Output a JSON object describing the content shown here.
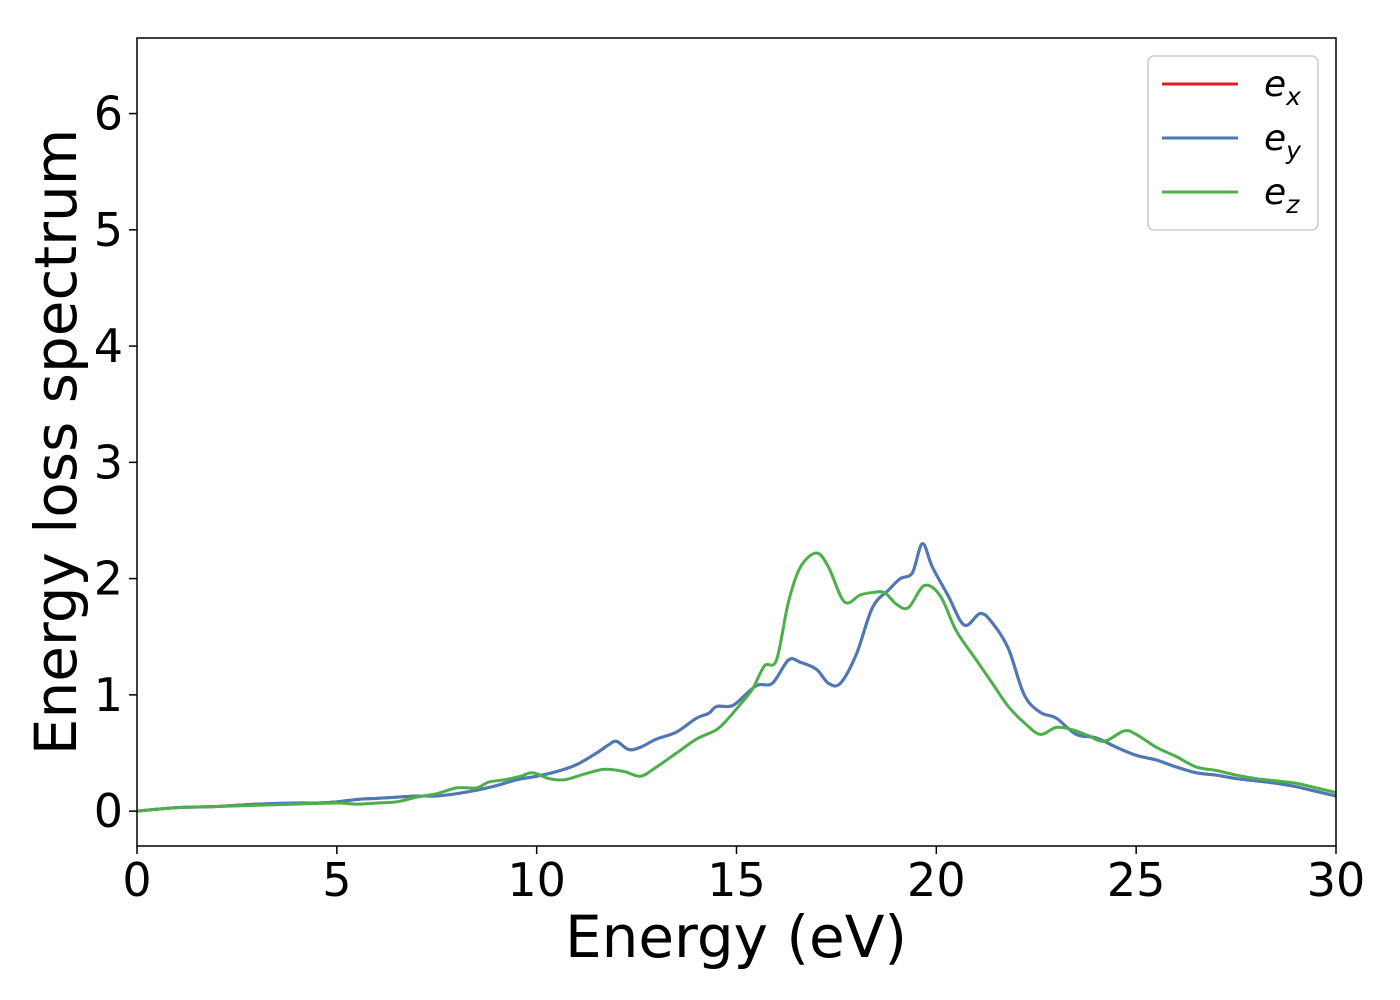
{
  "chart_data": {
    "type": "line",
    "xlabel": "Energy (eV)",
    "ylabel": "Energy loss spectrum",
    "xlim": [
      0,
      30
    ],
    "ylim": [
      -0.3,
      6.65
    ],
    "xticks": [
      "0",
      "5",
      "10",
      "15",
      "20",
      "25",
      "30"
    ],
    "yticks": [
      "0",
      "1",
      "2",
      "3",
      "4",
      "5",
      "6"
    ],
    "grid": false,
    "legend_position": "top-right",
    "series": [
      {
        "name": "e_x",
        "legend_base": "e",
        "legend_sub": "x",
        "color": "#e41a1c",
        "x": [
          0,
          1,
          2,
          3,
          4,
          4.5,
          5,
          5.5,
          6,
          6.5,
          7,
          7.5,
          8,
          8.5,
          9,
          9.5,
          10,
          10.5,
          11,
          11.5,
          11.8,
          12,
          12.3,
          12.6,
          13,
          13.5,
          14,
          14.3,
          14.5,
          14.8,
          15,
          15.5,
          15.9,
          16.3,
          16.6,
          17,
          17.3,
          17.6,
          18,
          18.4,
          18.8,
          19.1,
          19.4,
          19.65,
          19.9,
          20.3,
          20.7,
          21.1,
          21.4,
          21.8,
          22.2,
          22.6,
          23,
          23.5,
          24,
          24.5,
          25,
          25.5,
          26,
          26.5,
          27,
          27.5,
          28,
          28.5,
          29,
          29.5,
          30
        ],
        "y": [
          0,
          0.03,
          0.04,
          0.06,
          0.07,
          0.07,
          0.08,
          0.1,
          0.11,
          0.12,
          0.13,
          0.13,
          0.15,
          0.18,
          0.22,
          0.27,
          0.3,
          0.34,
          0.4,
          0.5,
          0.57,
          0.6,
          0.53,
          0.55,
          0.62,
          0.68,
          0.8,
          0.84,
          0.9,
          0.9,
          0.93,
          1.08,
          1.1,
          1.3,
          1.28,
          1.22,
          1.1,
          1.1,
          1.35,
          1.75,
          1.9,
          2.0,
          2.05,
          2.3,
          2.1,
          1.85,
          1.6,
          1.7,
          1.62,
          1.4,
          1.0,
          0.85,
          0.8,
          0.66,
          0.63,
          0.55,
          0.48,
          0.44,
          0.38,
          0.33,
          0.31,
          0.28,
          0.26,
          0.24,
          0.21,
          0.17,
          0.13
        ]
      },
      {
        "name": "e_y",
        "legend_base": "e",
        "legend_sub": "y",
        "color": "#4a7ab8",
        "x": [
          0,
          1,
          2,
          3,
          4,
          4.5,
          5,
          5.5,
          6,
          6.5,
          7,
          7.5,
          8,
          8.5,
          9,
          9.5,
          10,
          10.5,
          11,
          11.5,
          11.8,
          12,
          12.3,
          12.6,
          13,
          13.5,
          14,
          14.3,
          14.5,
          14.8,
          15,
          15.5,
          15.9,
          16.3,
          16.6,
          17,
          17.3,
          17.6,
          18,
          18.4,
          18.8,
          19.1,
          19.4,
          19.65,
          19.9,
          20.3,
          20.7,
          21.1,
          21.4,
          21.8,
          22.2,
          22.6,
          23,
          23.5,
          24,
          24.5,
          25,
          25.5,
          26,
          26.5,
          27,
          27.5,
          28,
          28.5,
          29,
          29.5,
          30
        ],
        "y": [
          0,
          0.03,
          0.04,
          0.06,
          0.07,
          0.07,
          0.08,
          0.1,
          0.11,
          0.12,
          0.13,
          0.13,
          0.15,
          0.18,
          0.22,
          0.27,
          0.3,
          0.34,
          0.4,
          0.5,
          0.57,
          0.6,
          0.53,
          0.55,
          0.62,
          0.68,
          0.8,
          0.84,
          0.9,
          0.9,
          0.93,
          1.08,
          1.1,
          1.3,
          1.28,
          1.22,
          1.1,
          1.1,
          1.35,
          1.75,
          1.9,
          2.0,
          2.05,
          2.3,
          2.1,
          1.85,
          1.6,
          1.7,
          1.62,
          1.4,
          1.0,
          0.85,
          0.8,
          0.66,
          0.63,
          0.55,
          0.48,
          0.44,
          0.38,
          0.33,
          0.31,
          0.28,
          0.26,
          0.24,
          0.21,
          0.17,
          0.13
        ]
      },
      {
        "name": "e_z",
        "legend_base": "e",
        "legend_sub": "z",
        "color": "#4daf4a",
        "x": [
          0,
          1,
          2,
          3,
          4,
          5,
          5.5,
          6,
          6.5,
          7,
          7.5,
          8,
          8.5,
          8.8,
          9.2,
          9.6,
          9.9,
          10.3,
          10.7,
          11.2,
          11.7,
          12.2,
          12.6,
          13,
          13.5,
          14,
          14.5,
          14.8,
          15.1,
          15.4,
          15.7,
          16,
          16.3,
          16.6,
          17,
          17.3,
          17.7,
          18.1,
          18.4,
          18.7,
          19,
          19.3,
          19.7,
          20.1,
          20.5,
          21,
          21.4,
          21.8,
          22.2,
          22.6,
          23,
          23.4,
          23.8,
          24.2,
          24.7,
          25,
          25.5,
          26,
          26.5,
          27,
          27.5,
          28,
          28.5,
          29,
          29.5,
          30
        ],
        "y": [
          0,
          0.03,
          0.04,
          0.05,
          0.06,
          0.07,
          0.06,
          0.07,
          0.08,
          0.12,
          0.15,
          0.2,
          0.2,
          0.25,
          0.27,
          0.3,
          0.33,
          0.28,
          0.27,
          0.32,
          0.36,
          0.34,
          0.3,
          0.38,
          0.5,
          0.62,
          0.7,
          0.8,
          0.92,
          1.05,
          1.25,
          1.3,
          1.8,
          2.1,
          2.22,
          2.1,
          1.8,
          1.86,
          1.88,
          1.88,
          1.78,
          1.75,
          1.94,
          1.85,
          1.55,
          1.3,
          1.1,
          0.9,
          0.76,
          0.66,
          0.72,
          0.7,
          0.65,
          0.6,
          0.69,
          0.66,
          0.55,
          0.47,
          0.38,
          0.35,
          0.31,
          0.28,
          0.26,
          0.24,
          0.2,
          0.16
        ]
      }
    ]
  }
}
